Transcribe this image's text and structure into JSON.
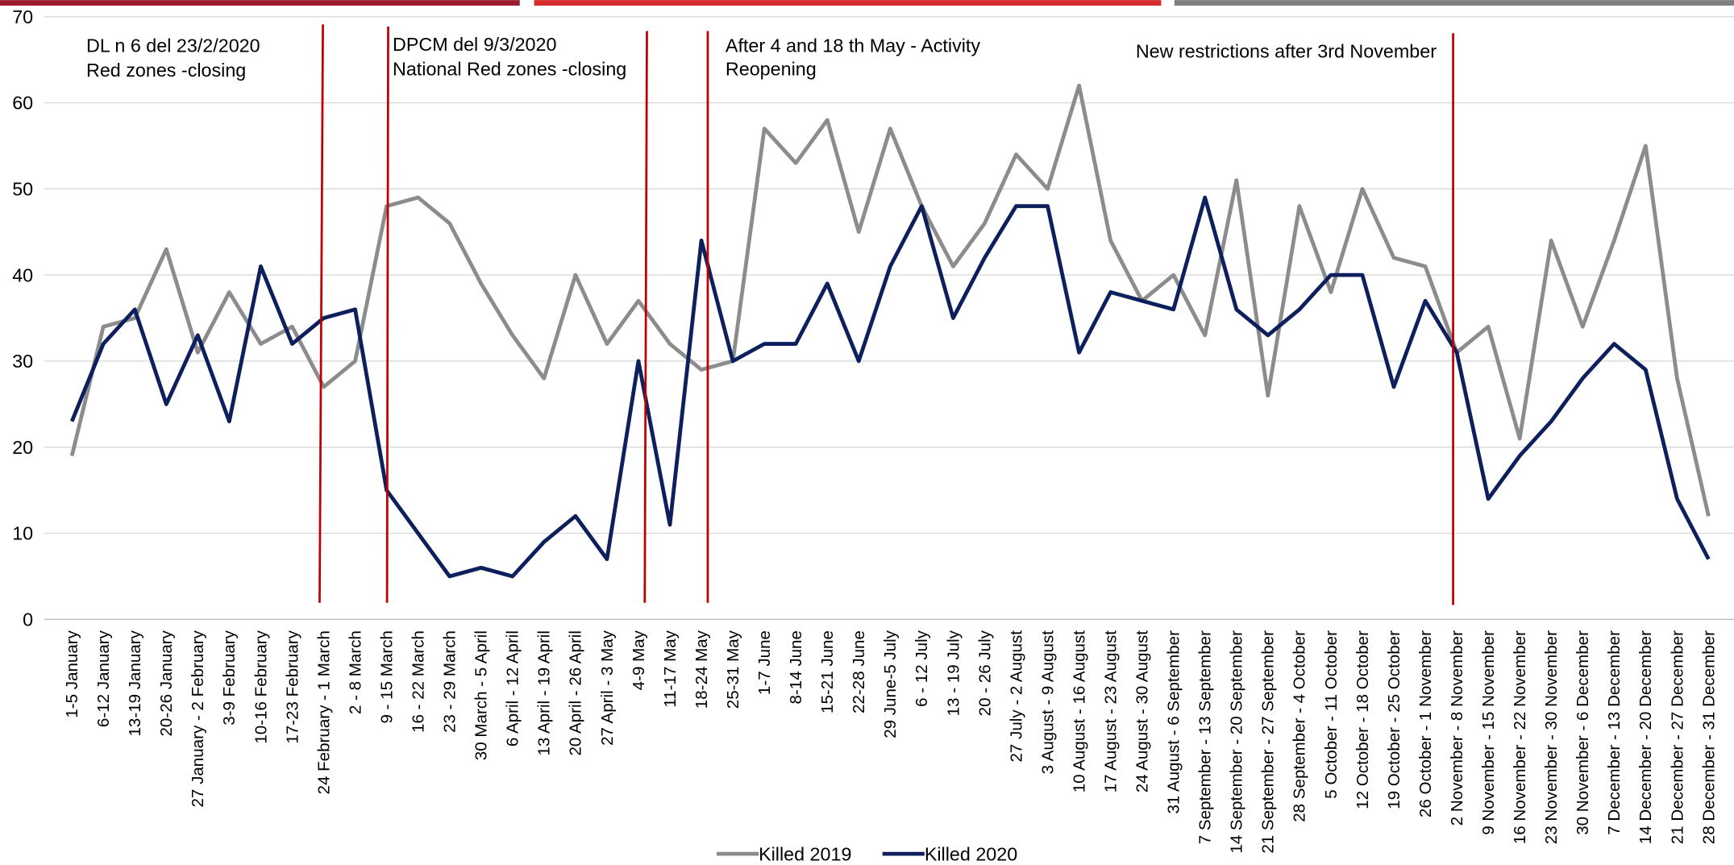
{
  "chart_data": {
    "type": "line",
    "annotations": [
      "DL n 6 del 23/2/2020",
      "Red zones -closing",
      "DPCM del 9/3/2020",
      "National Red zones -closing",
      "After 4 and 18 th May - Activity",
      "Reopening",
      "New restrictions after 3rd November"
    ],
    "categories": [
      "1-5 January",
      "6-12 January",
      "13-19 January",
      "20-26 January",
      "27 January - 2 February",
      "3-9 February",
      "10-16 February",
      "17-23 February",
      "24 February - 1 March",
      "2 - 8 March",
      "9 - 15 March",
      "16 - 22 March",
      "23 - 29 March",
      "30 March - 5 April",
      "6 April - 12 April",
      "13 April - 19 April",
      "20 April - 26 April",
      "27 April - 3 May",
      "4-9 May",
      "11-17 May",
      "18-24 May",
      "25-31 May",
      "1-7 June",
      "8-14 June",
      "15-21 June",
      "22-28 June",
      "29 June-5 July",
      "6 - 12 July",
      "13 - 19 July",
      "20 - 26 July",
      "27 July - 2 August",
      "3 August - 9 August",
      "10 August - 16 August",
      "17 August - 23 August",
      "24 August - 30 August",
      "31 August - 6 September",
      "7 September - 13 September",
      "14 September - 20 September",
      "21 September - 27 September",
      "28 September - 4 October",
      "5 October - 11 October",
      "12 October - 18 October",
      "19 October - 25 October",
      "26 October - 1 November",
      "2 November - 8 November",
      "9 November - 15 November",
      "16 November - 22 November",
      "23 November - 30 November",
      "30 November - 6 December",
      "7 December - 13 December",
      "14 December - 20 December",
      "21 December - 27 December",
      "28 December - 31 December"
    ],
    "series": [
      {
        "name": "Killed 2019",
        "color": "#8c8c8c",
        "values": [
          19,
          34,
          35,
          43,
          31,
          38,
          32,
          34,
          27,
          30,
          48,
          49,
          46,
          39,
          33,
          28,
          40,
          32,
          37,
          32,
          29,
          30,
          57,
          53,
          58,
          45,
          57,
          48,
          41,
          46,
          54,
          50,
          62,
          44,
          37,
          40,
          33,
          51,
          26,
          48,
          38,
          50,
          42,
          41,
          31,
          34,
          21,
          44,
          34,
          44,
          55,
          28,
          12
        ]
      },
      {
        "name": "Killed 2020",
        "color": "#0d1f5c",
        "values": [
          23,
          32,
          36,
          25,
          33,
          23,
          41,
          32,
          35,
          36,
          15,
          10,
          5,
          6,
          5,
          9,
          12,
          7,
          30,
          11,
          44,
          30,
          32,
          32,
          39,
          30,
          41,
          48,
          35,
          42,
          48,
          48,
          31,
          38,
          37,
          36,
          49,
          36,
          33,
          36,
          40,
          40,
          27,
          37,
          31,
          14,
          19,
          23,
          28,
          32,
          29,
          14,
          7
        ]
      }
    ],
    "ylim": [
      0,
      70
    ],
    "yticks": [
      0,
      10,
      20,
      30,
      40,
      50,
      60,
      70
    ],
    "grid": true,
    "legend": "bottom"
  }
}
